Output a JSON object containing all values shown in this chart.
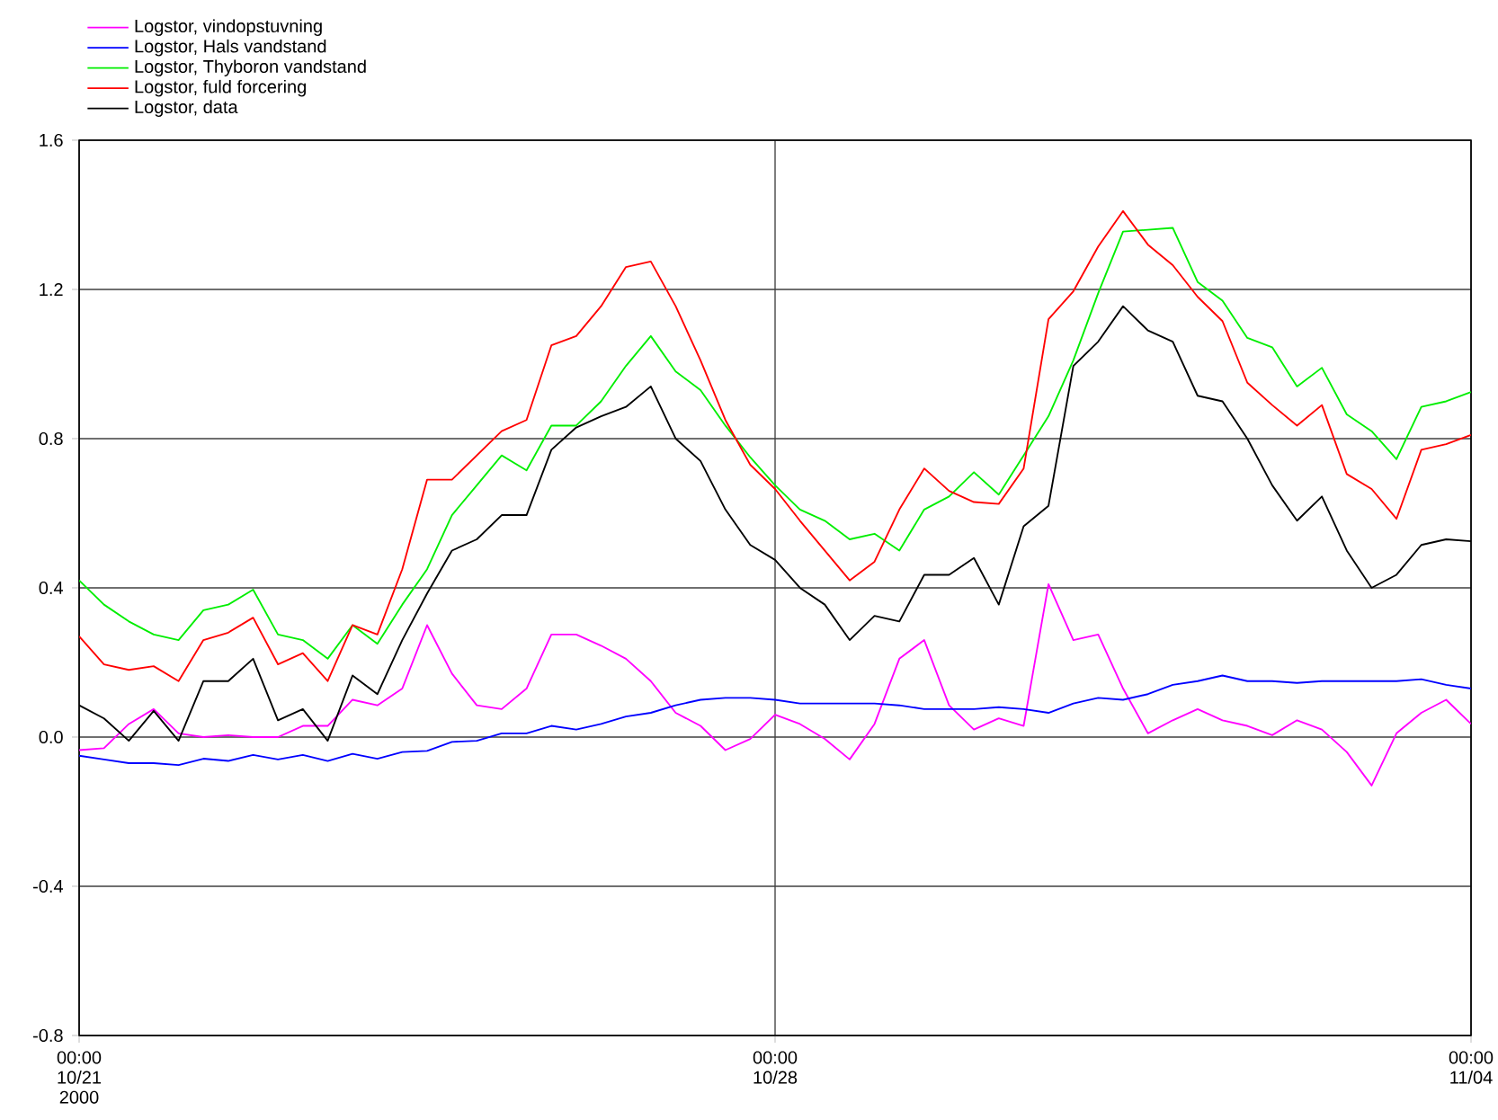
{
  "chart_data": {
    "type": "line",
    "x": [
      "2000-10-21T00:00",
      "2000-10-21T06:00",
      "2000-10-21T12:00",
      "2000-10-21T18:00",
      "2000-10-22T00:00",
      "2000-10-22T06:00",
      "2000-10-22T12:00",
      "2000-10-22T18:00",
      "2000-10-23T00:00",
      "2000-10-23T06:00",
      "2000-10-23T12:00",
      "2000-10-23T18:00",
      "2000-10-24T00:00",
      "2000-10-24T06:00",
      "2000-10-24T12:00",
      "2000-10-24T18:00",
      "2000-10-25T00:00",
      "2000-10-25T06:00",
      "2000-10-25T12:00",
      "2000-10-25T18:00",
      "2000-10-26T00:00",
      "2000-10-26T06:00",
      "2000-10-26T12:00",
      "2000-10-26T18:00",
      "2000-10-27T00:00",
      "2000-10-27T06:00",
      "2000-10-27T12:00",
      "2000-10-27T18:00",
      "2000-10-28T00:00",
      "2000-10-28T06:00",
      "2000-10-28T12:00",
      "2000-10-28T18:00",
      "2000-10-29T00:00",
      "2000-10-29T06:00",
      "2000-10-29T12:00",
      "2000-10-29T18:00",
      "2000-10-30T00:00",
      "2000-10-30T06:00",
      "2000-10-30T12:00",
      "2000-10-30T18:00",
      "2000-10-31T00:00",
      "2000-10-31T06:00",
      "2000-10-31T12:00",
      "2000-10-31T18:00",
      "2000-11-01T00:00",
      "2000-11-01T06:00",
      "2000-11-01T12:00",
      "2000-11-01T18:00",
      "2000-11-02T00:00",
      "2000-11-02T06:00",
      "2000-11-02T12:00",
      "2000-11-02T18:00",
      "2000-11-03T00:00",
      "2000-11-03T06:00",
      "2000-11-03T12:00",
      "2000-11-03T18:00",
      "2000-11-04T00:00"
    ],
    "series": [
      {
        "name": "Logstor, vindopstuvning",
        "color": "#ff00ff",
        "values": [
          -0.035,
          -0.03,
          0.035,
          0.075,
          0.01,
          0.0,
          0.005,
          0.0,
          0.0,
          0.03,
          0.03,
          0.1,
          0.085,
          0.13,
          0.3,
          0.17,
          0.085,
          0.075,
          0.13,
          0.275,
          0.275,
          0.245,
          0.21,
          0.15,
          0.065,
          0.03,
          -0.035,
          -0.005,
          0.06,
          0.035,
          -0.005,
          -0.06,
          0.035,
          0.21,
          0.26,
          0.085,
          0.02,
          0.05,
          0.03,
          0.41,
          0.26,
          0.275,
          0.13,
          0.01,
          0.045,
          0.075,
          0.045,
          0.03,
          0.005,
          0.045,
          0.02,
          -0.04,
          -0.13,
          0.01,
          0.065,
          0.1,
          0.035
        ]
      },
      {
        "name": "Logstor, Hals vandstand",
        "color": "#0000ff",
        "values": [
          -0.05,
          -0.06,
          -0.07,
          -0.07,
          -0.075,
          -0.058,
          -0.064,
          -0.048,
          -0.06,
          -0.048,
          -0.064,
          -0.045,
          -0.058,
          -0.04,
          -0.037,
          -0.013,
          -0.01,
          0.01,
          0.01,
          0.03,
          0.02,
          0.035,
          0.055,
          0.065,
          0.085,
          0.1,
          0.105,
          0.105,
          0.1,
          0.09,
          0.09,
          0.09,
          0.09,
          0.085,
          0.075,
          0.075,
          0.075,
          0.08,
          0.075,
          0.065,
          0.09,
          0.105,
          0.1,
          0.115,
          0.14,
          0.15,
          0.165,
          0.15,
          0.15,
          0.145,
          0.15,
          0.15,
          0.15,
          0.15,
          0.155,
          0.14,
          0.13
        ]
      },
      {
        "name": "Logstor, Thyboron vandstand",
        "color": "#00ee00",
        "values": [
          0.42,
          0.355,
          0.31,
          0.275,
          0.26,
          0.34,
          0.355,
          0.395,
          0.275,
          0.26,
          0.21,
          0.3,
          0.25,
          0.355,
          0.45,
          0.595,
          0.675,
          0.755,
          0.715,
          0.835,
          0.835,
          0.9,
          0.995,
          1.075,
          0.98,
          0.93,
          0.835,
          0.75,
          0.675,
          0.61,
          0.58,
          0.53,
          0.545,
          0.5,
          0.61,
          0.645,
          0.71,
          0.65,
          0.755,
          0.86,
          1.01,
          1.19,
          1.355,
          1.36,
          1.365,
          1.22,
          1.17,
          1.07,
          1.045,
          0.94,
          0.99,
          0.865,
          0.82,
          0.745,
          0.885,
          0.9,
          0.925
        ]
      },
      {
        "name": "Logstor, fuld forcering",
        "color": "#ff0000",
        "values": [
          0.27,
          0.195,
          0.18,
          0.19,
          0.15,
          0.26,
          0.28,
          0.32,
          0.195,
          0.225,
          0.15,
          0.3,
          0.275,
          0.45,
          0.69,
          0.69,
          0.755,
          0.82,
          0.85,
          1.05,
          1.075,
          1.155,
          1.26,
          1.275,
          1.155,
          1.01,
          0.85,
          0.73,
          0.665,
          0.58,
          0.5,
          0.42,
          0.47,
          0.61,
          0.72,
          0.66,
          0.63,
          0.625,
          0.72,
          1.12,
          1.195,
          1.315,
          1.41,
          1.32,
          1.265,
          1.18,
          1.115,
          0.95,
          0.89,
          0.835,
          0.89,
          0.705,
          0.665,
          0.585,
          0.77,
          0.785,
          0.81
        ]
      },
      {
        "name": "Logstor, data",
        "color": "#000000",
        "values": [
          0.085,
          0.05,
          -0.01,
          0.07,
          -0.01,
          0.15,
          0.15,
          0.21,
          0.045,
          0.075,
          -0.01,
          0.165,
          0.115,
          0.26,
          0.385,
          0.5,
          0.53,
          0.595,
          0.595,
          0.77,
          0.83,
          0.86,
          0.885,
          0.94,
          0.8,
          0.74,
          0.61,
          0.515,
          0.475,
          0.4,
          0.355,
          0.26,
          0.325,
          0.31,
          0.435,
          0.435,
          0.48,
          0.355,
          0.565,
          0.62,
          0.995,
          1.06,
          1.155,
          1.09,
          1.06,
          0.915,
          0.9,
          0.8,
          0.675,
          0.58,
          0.645,
          0.5,
          0.4,
          0.435,
          0.515,
          0.53,
          0.525
        ]
      }
    ],
    "xlim": [
      "2000-10-21T00:00",
      "2000-11-04T00:00"
    ],
    "xticks": [
      {
        "value": "2000-10-21T00:00",
        "label": "00:00 10/21 2000"
      },
      {
        "value": "2000-10-28T00:00",
        "label": "00:00 10/28"
      },
      {
        "value": "2000-11-04T00:00",
        "label": "00:00 11/04"
      }
    ],
    "ylim": [
      -0.8,
      1.6
    ],
    "yticks": [
      -0.8,
      -0.4,
      {
        "value": 0,
        "label": "0.0"
      },
      0.4,
      0.8,
      1.2,
      1.6
    ],
    "grid": true,
    "legend": "top left"
  }
}
